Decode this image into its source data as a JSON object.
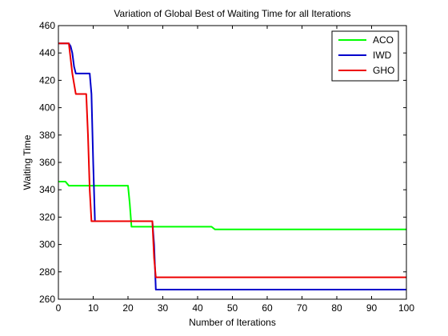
{
  "chart_data": {
    "type": "line",
    "title": "Variation of Global Best of Waiting Time for all Iterations",
    "xlabel": "Number of Iterations",
    "ylabel": "Waiting Time",
    "xlim": [
      0,
      100
    ],
    "ylim": [
      260,
      460
    ],
    "xticks": [
      0,
      10,
      20,
      30,
      40,
      50,
      60,
      70,
      80,
      90,
      100
    ],
    "yticks": [
      260,
      280,
      300,
      320,
      340,
      360,
      380,
      400,
      420,
      440,
      460
    ],
    "grid": false,
    "legend_position": "top-right",
    "series": [
      {
        "name": "ACO",
        "color": "#00ff00",
        "x": [
          0,
          1,
          2,
          3,
          4,
          20,
          20.5,
          21,
          44,
          45,
          100
        ],
        "y": [
          346,
          346,
          346,
          343,
          343,
          343,
          330,
          313,
          313,
          311,
          311
        ]
      },
      {
        "name": "IWD",
        "color": "#0000cc",
        "x": [
          0,
          1,
          2,
          3,
          3.5,
          4,
          4.5,
          5,
          9,
          9.5,
          10,
          10.5,
          27,
          27.5,
          28,
          100
        ],
        "y": [
          447,
          447,
          447,
          447,
          445,
          440,
          430,
          425,
          425,
          410,
          360,
          317,
          317,
          300,
          267,
          267
        ]
      },
      {
        "name": "GHO",
        "color": "#ee0000",
        "x": [
          0,
          1,
          2,
          3,
          4,
          5,
          8,
          8.5,
          9,
          9.5,
          10,
          27,
          27.5,
          28,
          100
        ],
        "y": [
          447,
          447,
          447,
          447,
          425,
          410,
          410,
          380,
          340,
          317,
          317,
          317,
          290,
          276,
          276
        ]
      }
    ]
  }
}
